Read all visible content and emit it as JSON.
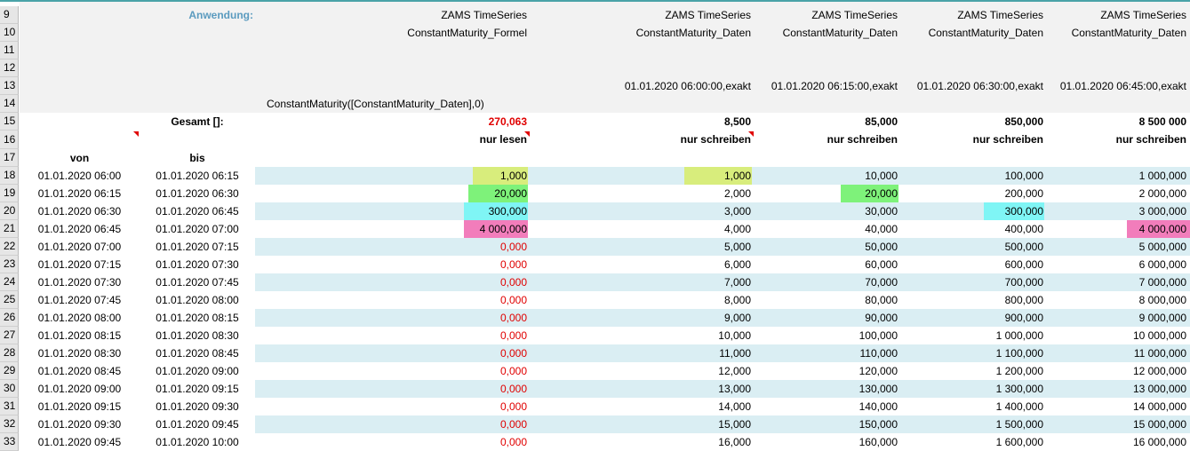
{
  "row_numbers": [
    "9",
    "10",
    "11",
    "12",
    "13",
    "14",
    "15",
    "16",
    "17",
    "18",
    "19",
    "20",
    "21",
    "22",
    "23",
    "24",
    "25",
    "26",
    "27",
    "28",
    "29",
    "30",
    "31",
    "32",
    "33"
  ],
  "header": {
    "anwendung_label": "Anwendung:",
    "app_line1": [
      "ZAMS TimeSeries",
      "ZAMS TimeSeries",
      "ZAMS TimeSeries",
      "ZAMS TimeSeries",
      "ZAMS TimeSeries"
    ],
    "app_line2": [
      "ConstantMaturity_Formel",
      "ConstantMaturity_Daten",
      "ConstantMaturity_Daten",
      "ConstantMaturity_Daten",
      "ConstantMaturity_Daten"
    ],
    "timestamps": [
      "01.01.2020 06:00:00,exakt",
      "01.01.2020 06:15:00,exakt",
      "01.01.2020 06:30:00,exakt",
      "01.01.2020 06:45:00,exakt"
    ],
    "formula": "ConstantMaturity([ConstantMaturity_Daten],0)",
    "gesamt_label": "Gesamt []:",
    "totals": [
      "270,063",
      "8,500",
      "85,000",
      "850,000",
      "8 500 000"
    ],
    "modes": [
      "nur lesen",
      "nur schreiben",
      "nur schreiben",
      "nur schreiben",
      "nur schreiben"
    ],
    "von": "von",
    "bis": "bis"
  },
  "data_rows": [
    [
      "01.01.2020 06:00",
      "01.01.2020 06:15",
      "1,000",
      "1,000",
      "10,000",
      "100,000",
      "1 000,000"
    ],
    [
      "01.01.2020 06:15",
      "01.01.2020 06:30",
      "20,000",
      "2,000",
      "20,000",
      "200,000",
      "2 000,000"
    ],
    [
      "01.01.2020 06:30",
      "01.01.2020 06:45",
      "300,000",
      "3,000",
      "30,000",
      "300,000",
      "3 000,000"
    ],
    [
      "01.01.2020 06:45",
      "01.01.2020 07:00",
      "4 000,000",
      "4,000",
      "40,000",
      "400,000",
      "4 000,000"
    ],
    [
      "01.01.2020 07:00",
      "01.01.2020 07:15",
      "0,000",
      "5,000",
      "50,000",
      "500,000",
      "5 000,000"
    ],
    [
      "01.01.2020 07:15",
      "01.01.2020 07:30",
      "0,000",
      "6,000",
      "60,000",
      "600,000",
      "6 000,000"
    ],
    [
      "01.01.2020 07:30",
      "01.01.2020 07:45",
      "0,000",
      "7,000",
      "70,000",
      "700,000",
      "7 000,000"
    ],
    [
      "01.01.2020 07:45",
      "01.01.2020 08:00",
      "0,000",
      "8,000",
      "80,000",
      "800,000",
      "8 000,000"
    ],
    [
      "01.01.2020 08:00",
      "01.01.2020 08:15",
      "0,000",
      "9,000",
      "90,000",
      "900,000",
      "9 000,000"
    ],
    [
      "01.01.2020 08:15",
      "01.01.2020 08:30",
      "0,000",
      "10,000",
      "100,000",
      "1 000,000",
      "10 000,000"
    ],
    [
      "01.01.2020 08:30",
      "01.01.2020 08:45",
      "0,000",
      "11,000",
      "110,000",
      "1 100,000",
      "11 000,000"
    ],
    [
      "01.01.2020 08:45",
      "01.01.2020 09:00",
      "0,000",
      "12,000",
      "120,000",
      "1 200,000",
      "12 000,000"
    ],
    [
      "01.01.2020 09:00",
      "01.01.2020 09:15",
      "0,000",
      "13,000",
      "130,000",
      "1 300,000",
      "13 000,000"
    ],
    [
      "01.01.2020 09:15",
      "01.01.2020 09:30",
      "0,000",
      "14,000",
      "140,000",
      "1 400,000",
      "14 000,000"
    ],
    [
      "01.01.2020 09:30",
      "01.01.2020 09:45",
      "0,000",
      "15,000",
      "150,000",
      "1 500,000",
      "15 000,000"
    ],
    [
      "01.01.2020 09:45",
      "01.01.2020 10:00",
      "0,000",
      "16,000",
      "160,000",
      "1 600,000",
      "16 000,000"
    ]
  ]
}
